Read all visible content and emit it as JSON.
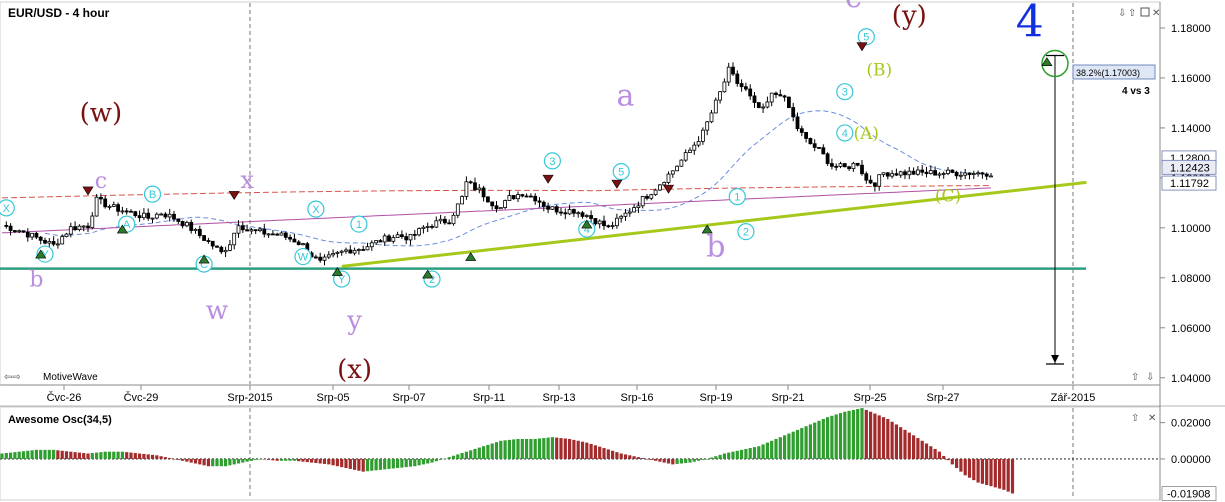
{
  "chart_data": {
    "type": "candlestick",
    "title": "EUR/USD - 4 hour",
    "price_axis": {
      "ticks": [
        "1.18000",
        "1.16000",
        "1.14000",
        "1.12000",
        "1.10000",
        "1.08000",
        "1.06000",
        "1.04000"
      ],
      "range": [
        1.0375,
        1.19
      ]
    },
    "price_tags": [
      {
        "value": 1.128,
        "text": "1.12800"
      },
      {
        "value": 1.12423,
        "text": "1.12423"
      },
      {
        "value": 1.11792,
        "text": "1.11792"
      }
    ],
    "x_ticks": [
      "Čvc-26",
      "Čvc-29",
      "Srp-2015",
      "Srp-05",
      "Srp-07",
      "Srp-11",
      "Srp-13",
      "Srp-16",
      "Srp-19",
      "Srp-21",
      "Srp-25",
      "Srp-27",
      "Zář-2015"
    ],
    "series": [
      {
        "kind": "candles",
        "close_path": [
          [
            0,
            1.101
          ],
          [
            4,
            1.099
          ],
          [
            8,
            1.096
          ],
          [
            12,
            1.093
          ],
          [
            16,
            1.1
          ],
          [
            20,
            1.101
          ],
          [
            22,
            1.111
          ],
          [
            26,
            1.108
          ],
          [
            30,
            1.106
          ],
          [
            34,
            1.104
          ],
          [
            37,
            1.106
          ],
          [
            40,
            1.104
          ],
          [
            43,
            1.101
          ],
          [
            46,
            1.097
          ],
          [
            49,
            1.093
          ],
          [
            51,
            1.09
          ],
          [
            53,
            1.094
          ],
          [
            55,
            1.102
          ],
          [
            57,
            1.099
          ],
          [
            61,
            1.098
          ],
          [
            65,
            1.097
          ],
          [
            68,
            1.095
          ],
          [
            70,
            1.093
          ],
          [
            72,
            1.089
          ],
          [
            74,
            1.086
          ],
          [
            76,
            1.088
          ],
          [
            80,
            1.091
          ],
          [
            84,
            1.092
          ],
          [
            88,
            1.095
          ],
          [
            92,
            1.097
          ],
          [
            95,
            1.096
          ],
          [
            98,
            1.1
          ],
          [
            101,
            1.102
          ],
          [
            104,
            1.103
          ],
          [
            107,
            1.112
          ],
          [
            108,
            1.118
          ],
          [
            111,
            1.115
          ],
          [
            114,
            1.11
          ],
          [
            116,
            1.108
          ],
          [
            118,
            1.112
          ],
          [
            121,
            1.114
          ],
          [
            124,
            1.112
          ],
          [
            127,
            1.108
          ],
          [
            130,
            1.107
          ],
          [
            133,
            1.107
          ],
          [
            136,
            1.105
          ],
          [
            139,
            1.102
          ],
          [
            141,
            1.1
          ],
          [
            144,
            1.104
          ],
          [
            148,
            1.11
          ],
          [
            152,
            1.116
          ],
          [
            156,
            1.123
          ],
          [
            160,
            1.131
          ],
          [
            163,
            1.138
          ],
          [
            165,
            1.146
          ],
          [
            167,
            1.154
          ],
          [
            169,
            1.163
          ],
          [
            171,
            1.158
          ],
          [
            173,
            1.155
          ],
          [
            175,
            1.149
          ],
          [
            177,
            1.147
          ],
          [
            179,
            1.153
          ],
          [
            181,
            1.154
          ],
          [
            183,
            1.148
          ],
          [
            185,
            1.14
          ],
          [
            187,
            1.135
          ],
          [
            190,
            1.131
          ],
          [
            193,
            1.125
          ],
          [
            196,
            1.124
          ],
          [
            199,
            1.126
          ],
          [
            201,
            1.119
          ],
          [
            203,
            1.118
          ],
          [
            205,
            1.122
          ]
        ]
      },
      {
        "kind": "ma-blue-dashed"
      },
      {
        "kind": "ma-red-dashed"
      },
      {
        "kind": "ma-purple"
      }
    ],
    "trendline": {
      "from": [
        86,
        1.085
      ],
      "to": [
        215,
        1.117
      ]
    },
    "support_level": 1.0837,
    "fib_label": "38.2%(1.17003)",
    "fib_note": "4 vs 3",
    "target_arrow": {
      "index": 207,
      "from": 1.169,
      "to": 1.0455
    },
    "wave_labels": [
      {
        "text": "(w)",
        "i": 23,
        "v": 1.1425,
        "color": "#7b1010",
        "size": 26
      },
      {
        "text": "c",
        "i": 23,
        "v": 1.116,
        "color": "#b98ee0",
        "size": 22
      },
      {
        "text": "x",
        "i": 57,
        "v": 1.116,
        "color": "#b98ee0",
        "size": 24
      },
      {
        "text": "b",
        "i": 8,
        "v": 1.0765,
        "color": "#b98ee0",
        "size": 22
      },
      {
        "text": "w",
        "i": 50,
        "v": 1.0635,
        "color": "#b98ee0",
        "size": 26
      },
      {
        "text": "y",
        "i": 82,
        "v": 1.0595,
        "color": "#b98ee0",
        "size": 26
      },
      {
        "text": "(x)",
        "i": 82,
        "v": 1.04,
        "color": "#7b1010",
        "size": 26
      },
      {
        "text": "a",
        "i": 145,
        "v": 1.149,
        "color": "#b98ee0",
        "size": 30
      },
      {
        "text": "b",
        "i": 166,
        "v": 1.0885,
        "color": "#b98ee0",
        "size": 30
      },
      {
        "text": "c",
        "i": 198,
        "v": 1.1885,
        "color": "#b98ee0",
        "size": 30
      },
      {
        "text": "(y)",
        "i": 211,
        "v": 1.1815,
        "color": "#7b1010",
        "size": 26
      },
      {
        "text": "4",
        "i": 239,
        "v": 1.1765,
        "color": "#1030e0",
        "size": 44
      },
      {
        "text": "(B)",
        "i": 204,
        "v": 1.161,
        "color": "#a6c81a",
        "size": 17
      },
      {
        "text": "(A)",
        "i": 201,
        "v": 1.1355,
        "color": "#a6c81a",
        "size": 17
      },
      {
        "text": "(C)",
        "i": 220,
        "v": 1.1105,
        "color": "#a6c81a",
        "size": 17
      }
    ],
    "circle_labels": [
      {
        "text": "X",
        "i": 1,
        "v": 1.108
      },
      {
        "text": "Y",
        "i": 10,
        "v": 1.0895
      },
      {
        "text": "A",
        "i": 29,
        "v": 1.1015
      },
      {
        "text": "B",
        "i": 35,
        "v": 1.1135
      },
      {
        "text": "C",
        "i": 47,
        "v": 1.0855
      },
      {
        "text": "X",
        "i": 73,
        "v": 1.1075
      },
      {
        "text": "W",
        "i": 70,
        "v": 1.0885
      },
      {
        "text": "Y",
        "i": 79,
        "v": 1.0795
      },
      {
        "text": "1",
        "i": 83,
        "v": 1.1015
      },
      {
        "text": "2",
        "i": 100,
        "v": 1.0795
      },
      {
        "text": "3",
        "i": 128,
        "v": 1.1268
      },
      {
        "text": "4",
        "i": 136,
        "v": 1.0995
      },
      {
        "text": "5",
        "i": 144,
        "v": 1.1225
      },
      {
        "text": "1",
        "i": 171,
        "v": 1.1125
      },
      {
        "text": "2",
        "i": 173,
        "v": 1.0985
      },
      {
        "text": "3",
        "i": 196,
        "v": 1.1545
      },
      {
        "text": "4",
        "i": 196,
        "v": 1.138
      },
      {
        "text": "5",
        "i": 201,
        "v": 1.1765
      }
    ],
    "markers": [
      {
        "type": "down",
        "i": 20,
        "v": 1.1148
      },
      {
        "type": "up",
        "i": 28,
        "v": 1.0995
      },
      {
        "type": "up",
        "i": 9,
        "v": 1.0895
      },
      {
        "type": "down",
        "i": 54,
        "v": 1.113
      },
      {
        "type": "up",
        "i": 47,
        "v": 1.0875
      },
      {
        "type": "up",
        "i": 78,
        "v": 1.0825
      },
      {
        "type": "up",
        "i": 99,
        "v": 1.0815
      },
      {
        "type": "up",
        "i": 109,
        "v": 1.0885
      },
      {
        "type": "down",
        "i": 127,
        "v": 1.1195
      },
      {
        "type": "up",
        "i": 136,
        "v": 1.1015
      },
      {
        "type": "down",
        "i": 143,
        "v": 1.1175
      },
      {
        "type": "down",
        "i": 155,
        "v": 1.1155
      },
      {
        "type": "up",
        "i": 164,
        "v": 1.0995
      },
      {
        "type": "down",
        "i": 200,
        "v": 1.1725
      },
      {
        "type": "up",
        "i": 243,
        "v": 1.1665
      }
    ],
    "oscillator": {
      "title": "Awesome Osc(34,5)",
      "ticks": [
        "0.02000",
        "0.00000"
      ],
      "current": "-0.01908",
      "range": [
        -0.0215,
        0.0275
      ],
      "path": [
        [
          0,
          0.003
        ],
        [
          4,
          0.004
        ],
        [
          8,
          0.005
        ],
        [
          12,
          0.005
        ],
        [
          16,
          0.004
        ],
        [
          20,
          0.003
        ],
        [
          24,
          0.004
        ],
        [
          28,
          0.004
        ],
        [
          32,
          0.003
        ],
        [
          36,
          0.002
        ],
        [
          40,
          0
        ],
        [
          44,
          -0.002
        ],
        [
          48,
          -0.004
        ],
        [
          52,
          -0.004
        ],
        [
          56,
          -0.002
        ],
        [
          60,
          0
        ],
        [
          64,
          -0.001
        ],
        [
          68,
          -0.001
        ],
        [
          72,
          -0.002
        ],
        [
          76,
          -0.003
        ],
        [
          80,
          -0.005
        ],
        [
          84,
          -0.007
        ],
        [
          88,
          -0.006
        ],
        [
          92,
          -0.005
        ],
        [
          96,
          -0.004
        ],
        [
          100,
          -0.002
        ],
        [
          104,
          0.001
        ],
        [
          108,
          0.004
        ],
        [
          112,
          0.007
        ],
        [
          116,
          0.01
        ],
        [
          120,
          0.011
        ],
        [
          124,
          0.011
        ],
        [
          128,
          0.012
        ],
        [
          132,
          0.011
        ],
        [
          136,
          0.009
        ],
        [
          140,
          0.006
        ],
        [
          144,
          0.003
        ],
        [
          148,
          0.001
        ],
        [
          152,
          -0.001
        ],
        [
          156,
          -0.003
        ],
        [
          160,
          -0.002
        ],
        [
          164,
          0
        ],
        [
          168,
          0.003
        ],
        [
          172,
          0.005
        ],
        [
          176,
          0.007
        ],
        [
          180,
          0.011
        ],
        [
          184,
          0.015
        ],
        [
          188,
          0.019
        ],
        [
          192,
          0.023
        ],
        [
          196,
          0.026
        ],
        [
          200,
          0.028
        ],
        [
          202,
          0.026
        ],
        [
          206,
          0.022
        ],
        [
          210,
          0.016
        ],
        [
          214,
          0.01
        ],
        [
          218,
          0.004
        ],
        [
          221,
          -0.003
        ],
        [
          224,
          -0.009
        ],
        [
          227,
          -0.013
        ],
        [
          230,
          -0.015
        ],
        [
          233,
          -0.017
        ],
        [
          235,
          -0.019
        ]
      ]
    },
    "footer_label": "MotiveWave"
  }
}
